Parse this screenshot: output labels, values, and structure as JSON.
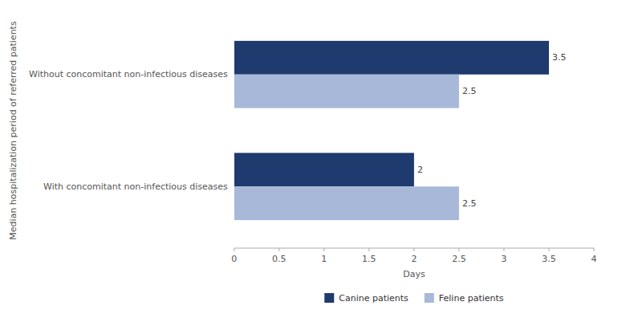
{
  "chart_data": {
    "type": "bar",
    "orientation": "horizontal",
    "categories": [
      "With concomitant non-infectious diseases",
      "Without concomitant non-infectious diseases"
    ],
    "series": [
      {
        "name": "Canine patients",
        "color": "#1f3a6e",
        "values": [
          2,
          3.5
        ]
      },
      {
        "name": "Feline patients",
        "color": "#a8b8d8",
        "values": [
          2.5,
          2.5
        ]
      }
    ],
    "xlabel": "Days",
    "ylabel": "Median hospitalization period of referred patients",
    "xlim": [
      0,
      4
    ],
    "xticks": [
      0,
      0.5,
      1,
      1.5,
      2,
      2.5,
      3,
      3.5,
      4
    ],
    "data_labels": true,
    "grid": false,
    "legend": "bottom"
  }
}
